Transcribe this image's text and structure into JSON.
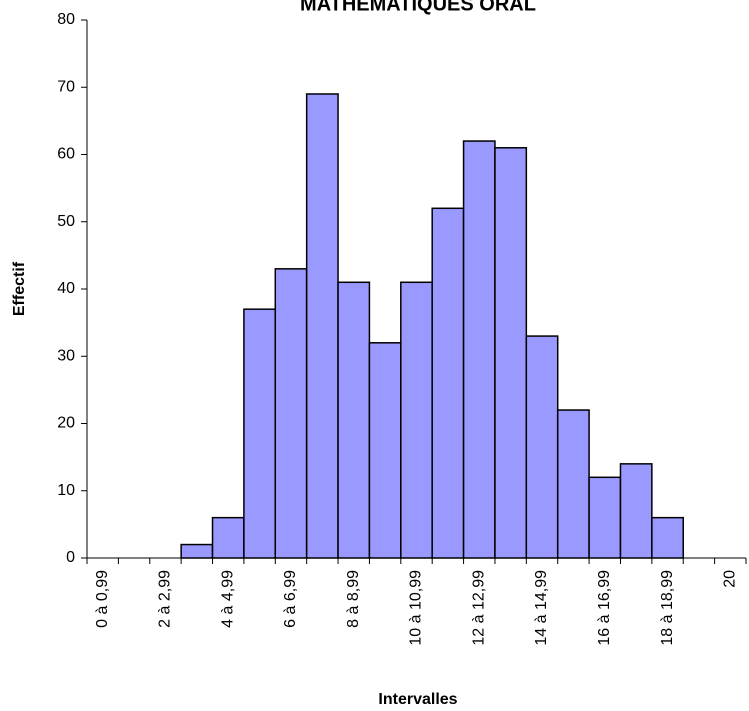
{
  "chart_data": {
    "type": "bar",
    "title": "MATHEMATIQUES ORAL",
    "x_label": "Intervalles",
    "y_label": "Effectif",
    "categories": [
      "0 à 0,99",
      null,
      "2 à 2,99",
      null,
      "4 à 4,99",
      null,
      "6 à 6,99",
      null,
      "8 à 8,99",
      null,
      "10 à 10,99",
      null,
      "12 à 12,99",
      null,
      "14 à 14,99",
      null,
      "16 à 16,99",
      null,
      "18 à 18,99",
      null,
      "20"
    ],
    "values": [
      0,
      0,
      0,
      2,
      6,
      37,
      43,
      69,
      41,
      32,
      41,
      52,
      62,
      61,
      33,
      22,
      12,
      14,
      6,
      0,
      0
    ],
    "color": "#9999ff",
    "ylim": [
      0,
      80
    ],
    "yticks": [
      0,
      10,
      20,
      30,
      40,
      50,
      60,
      70,
      80
    ],
    "grid": false
  }
}
